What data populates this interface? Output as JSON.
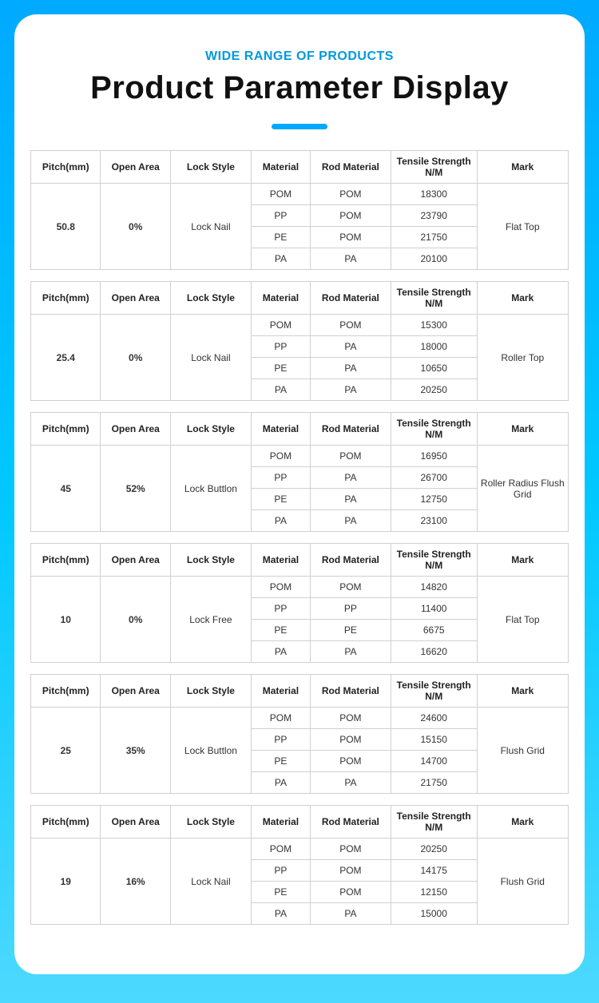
{
  "subtitle": "WIDE RANGE OF PRODUCTS",
  "title": "Product  Parameter Display",
  "colors": {
    "gradient_top": "#00aaff",
    "gradient_mid": "#00c8ff",
    "gradient_bot": "#4dd9ff",
    "inner_bg": "#ffffff",
    "subtitle_color": "#0099dd",
    "title_color": "#111111",
    "underline_color": "#00a8ff",
    "border_color": "#d0d0d0",
    "text_color": "#333333"
  },
  "headers": {
    "pitch": "Pitch(mm)",
    "open": "Open Area",
    "lock": "Lock Style",
    "material": "Material",
    "rod": "Rod Material",
    "tensile": "Tensile Strength N/M",
    "mark": "Mark"
  },
  "groups": [
    {
      "pitch": "50.8",
      "open": "0%",
      "lock": "Lock Nail",
      "mark": "Flat Top",
      "rows": [
        {
          "material": "POM",
          "rod": "POM",
          "tensile": "18300"
        },
        {
          "material": "PP",
          "rod": "POM",
          "tensile": "23790"
        },
        {
          "material": "PE",
          "rod": "POM",
          "tensile": "21750"
        },
        {
          "material": "PA",
          "rod": "PA",
          "tensile": "20100"
        }
      ]
    },
    {
      "pitch": "25.4",
      "open": "0%",
      "lock": "Lock Nail",
      "mark": "Roller Top",
      "rows": [
        {
          "material": "POM",
          "rod": "POM",
          "tensile": "15300"
        },
        {
          "material": "PP",
          "rod": "PA",
          "tensile": "18000"
        },
        {
          "material": "PE",
          "rod": "PA",
          "tensile": "10650"
        },
        {
          "material": "PA",
          "rod": "PA",
          "tensile": "20250"
        }
      ]
    },
    {
      "pitch": "45",
      "open": "52%",
      "lock": "Lock Buttlon",
      "mark": "Roller Radius Flush Grid",
      "rows": [
        {
          "material": "POM",
          "rod": "POM",
          "tensile": "16950"
        },
        {
          "material": "PP",
          "rod": "PA",
          "tensile": "26700"
        },
        {
          "material": "PE",
          "rod": "PA",
          "tensile": "12750"
        },
        {
          "material": "PA",
          "rod": "PA",
          "tensile": "23100"
        }
      ]
    },
    {
      "pitch": "10",
      "open": "0%",
      "lock": "Lock Free",
      "mark": "Flat Top",
      "rows": [
        {
          "material": "POM",
          "rod": "POM",
          "tensile": "14820"
        },
        {
          "material": "PP",
          "rod": "PP",
          "tensile": "11400"
        },
        {
          "material": "PE",
          "rod": "PE",
          "tensile": "6675"
        },
        {
          "material": "PA",
          "rod": "PA",
          "tensile": "16620"
        }
      ]
    },
    {
      "pitch": "25",
      "open": "35%",
      "lock": "Lock Buttlon",
      "mark": "Flush Grid",
      "rows": [
        {
          "material": "POM",
          "rod": "POM",
          "tensile": "24600"
        },
        {
          "material": "PP",
          "rod": "POM",
          "tensile": "15150"
        },
        {
          "material": "PE",
          "rod": "POM",
          "tensile": "14700"
        },
        {
          "material": "PA",
          "rod": "PA",
          "tensile": "21750"
        }
      ]
    },
    {
      "pitch": "19",
      "open": "16%",
      "lock": "Lock Nail",
      "mark": "Flush Grid",
      "rows": [
        {
          "material": "POM",
          "rod": "POM",
          "tensile": "20250"
        },
        {
          "material": "PP",
          "rod": "POM",
          "tensile": "14175"
        },
        {
          "material": "PE",
          "rod": "POM",
          "tensile": "12150"
        },
        {
          "material": "PA",
          "rod": "PA",
          "tensile": "15000"
        }
      ]
    }
  ]
}
